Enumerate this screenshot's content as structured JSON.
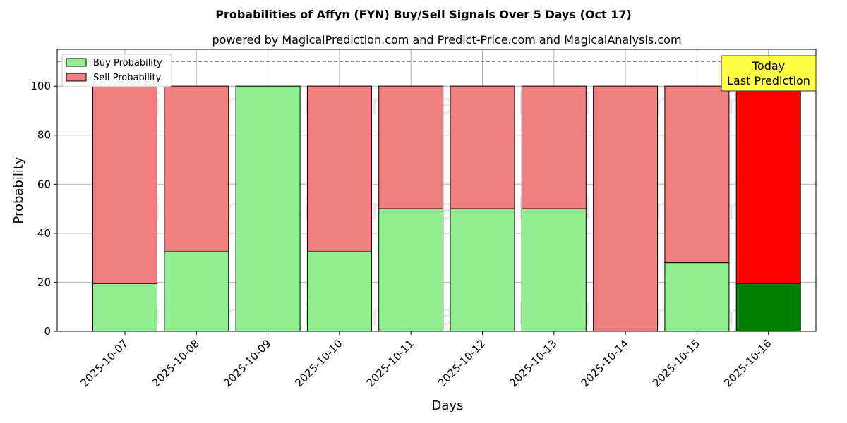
{
  "chart_data": {
    "type": "bar",
    "stacked": true,
    "title": "Probabilities of Affyn (FYN) Buy/Sell Signals Over 5 Days (Oct 17)",
    "subtitle": "powered by MagicalPrediction.com and Predict-Price.com and MagicalAnalysis.com",
    "xlabel": "Days",
    "ylabel": "Probability",
    "ylim": [
      0,
      115
    ],
    "yticks": [
      0,
      20,
      40,
      60,
      80,
      100
    ],
    "grid": true,
    "legend_position": "top-left",
    "categories": [
      "2025-10-07",
      "2025-10-08",
      "2025-10-09",
      "2025-10-10",
      "2025-10-11",
      "2025-10-12",
      "2025-10-13",
      "2025-10-14",
      "2025-10-15",
      "2025-10-16"
    ],
    "series": [
      {
        "name": "Buy Probability",
        "values": [
          19.5,
          32.5,
          100,
          32.5,
          50,
          50,
          50,
          0,
          28,
          19.5
        ],
        "color": "#90ee90",
        "highlight_color": "#008000"
      },
      {
        "name": "Sell Probability",
        "values": [
          80.5,
          67.5,
          0,
          67.5,
          50,
          50,
          50,
          100,
          72,
          80.5
        ],
        "color": "#f08080",
        "highlight_color": "#ff0000"
      }
    ],
    "highlight_index": 9,
    "reference_line": {
      "y": 110,
      "style": "dashed",
      "color": "#808080"
    },
    "annotation": {
      "lines": [
        "Today",
        "Last Prediction"
      ],
      "background": "#ffff44"
    },
    "watermarks": [
      "MagicalAnalysis.com",
      "MagicalPrediction.com"
    ]
  }
}
